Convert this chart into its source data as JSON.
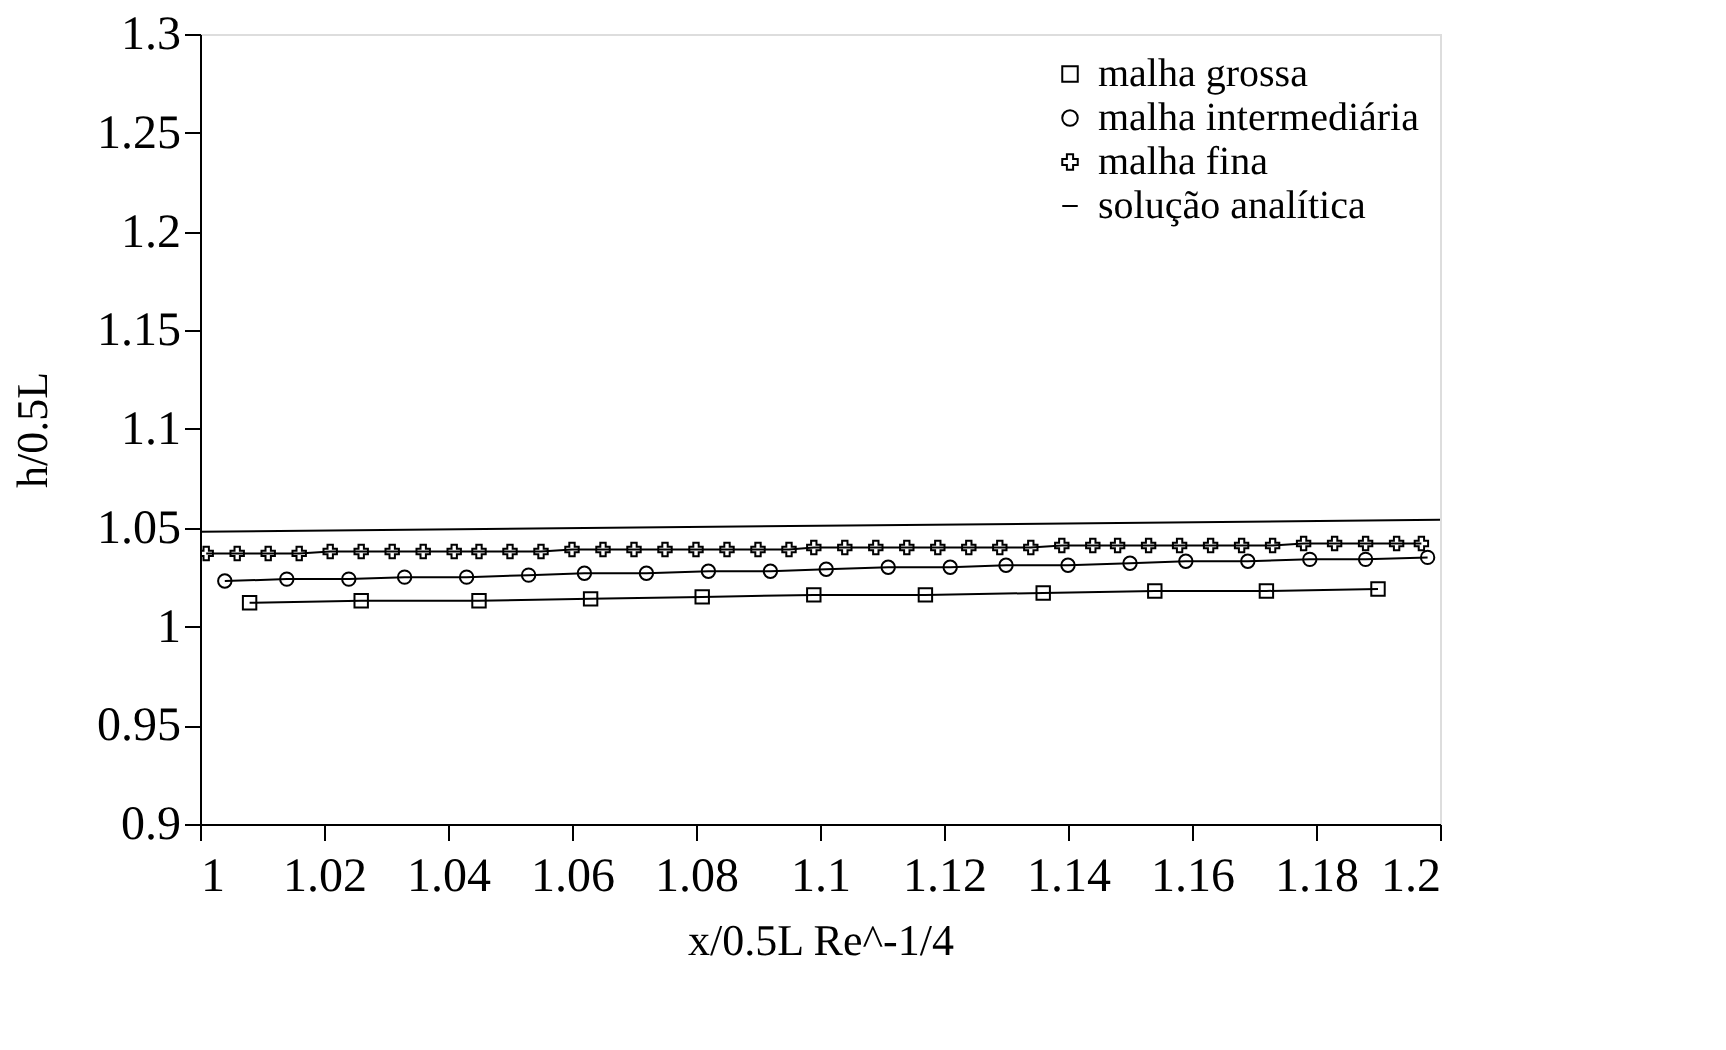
{
  "chart_data": {
    "type": "line",
    "xlabel": "x/0.5L Re^-1/4",
    "ylabel": "h/0.5L",
    "xlim": [
      1,
      1.2
    ],
    "xticks": [
      1,
      1.02,
      1.04,
      1.06,
      1.08,
      1.1,
      1.12,
      1.14,
      1.16,
      1.18,
      1.2
    ],
    "ylim": [
      0.9,
      1.3
    ],
    "yticks": [
      0.9,
      0.95,
      1,
      1.05,
      1.1,
      1.15,
      1.2,
      1.25,
      1.3
    ],
    "grid": false,
    "legend": "top right",
    "series": [
      {
        "name": "malha grossa",
        "color": "#000000",
        "marker": "square",
        "x": [
          1.008,
          1.026,
          1.045,
          1.063,
          1.081,
          1.099,
          1.117,
          1.136,
          1.154,
          1.172,
          1.19
        ],
        "values": [
          1.012,
          1.013,
          1.013,
          1.014,
          1.015,
          1.016,
          1.016,
          1.017,
          1.018,
          1.018,
          1.019
        ]
      },
      {
        "name": "malha intermediária",
        "color": "#000000",
        "marker": "circle",
        "x": [
          1.004,
          1.014,
          1.024,
          1.033,
          1.043,
          1.053,
          1.062,
          1.072,
          1.082,
          1.092,
          1.101,
          1.111,
          1.121,
          1.13,
          1.14,
          1.15,
          1.159,
          1.169,
          1.179,
          1.188,
          1.198
        ],
        "values": [
          1.023,
          1.024,
          1.024,
          1.025,
          1.025,
          1.026,
          1.027,
          1.027,
          1.028,
          1.028,
          1.029,
          1.03,
          1.03,
          1.031,
          1.031,
          1.032,
          1.033,
          1.033,
          1.034,
          1.034,
          1.035
        ]
      },
      {
        "name": "malha fina",
        "color": "#000000",
        "marker": "cross",
        "x": [
          1.001,
          1.006,
          1.011,
          1.016,
          1.021,
          1.026,
          1.031,
          1.036,
          1.041,
          1.045,
          1.05,
          1.055,
          1.06,
          1.065,
          1.07,
          1.075,
          1.08,
          1.085,
          1.09,
          1.095,
          1.099,
          1.104,
          1.109,
          1.114,
          1.119,
          1.124,
          1.129,
          1.134,
          1.139,
          1.144,
          1.148,
          1.153,
          1.158,
          1.163,
          1.168,
          1.173,
          1.178,
          1.183,
          1.188,
          1.193,
          1.197
        ],
        "values": [
          1.037,
          1.037,
          1.037,
          1.037,
          1.038,
          1.038,
          1.038,
          1.038,
          1.038,
          1.038,
          1.038,
          1.038,
          1.039,
          1.039,
          1.039,
          1.039,
          1.039,
          1.039,
          1.039,
          1.039,
          1.04,
          1.04,
          1.04,
          1.04,
          1.04,
          1.04,
          1.04,
          1.04,
          1.041,
          1.041,
          1.041,
          1.041,
          1.041,
          1.041,
          1.041,
          1.041,
          1.042,
          1.042,
          1.042,
          1.042,
          1.042
        ]
      },
      {
        "name": "solução analítica",
        "color": "#000000",
        "marker": "none",
        "x": [
          1,
          1.2
        ],
        "values": [
          1.048,
          1.054
        ]
      }
    ]
  }
}
